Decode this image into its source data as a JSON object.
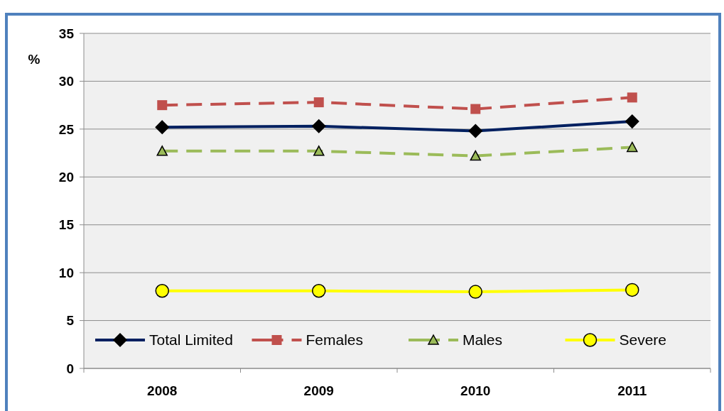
{
  "chart_data": {
    "type": "line",
    "ylabel": "%",
    "categories": [
      "2008",
      "2009",
      "2010",
      "2011"
    ],
    "series": [
      {
        "name": "Total Limited",
        "color": "#002060",
        "values": [
          25.2,
          25.3,
          24.8,
          25.8
        ],
        "marker": "diamond",
        "line_style": "solid"
      },
      {
        "name": "Females",
        "color": "#c0504d",
        "values": [
          27.5,
          27.8,
          27.1,
          28.3
        ],
        "marker": "square",
        "line_style": "dashed"
      },
      {
        "name": "Males",
        "color": "#9bbb59",
        "values": [
          22.7,
          22.7,
          22.2,
          23.1
        ],
        "marker": "triangle",
        "line_style": "dashed"
      },
      {
        "name": "Severe",
        "color": "#ffff00",
        "values": [
          8.1,
          8.1,
          8.0,
          8.2
        ],
        "marker": "circle",
        "line_style": "solid"
      }
    ],
    "ylim": [
      0,
      35
    ],
    "yticks": [
      0,
      5,
      10,
      15,
      20,
      25,
      30,
      35
    ],
    "grid": "y",
    "legend": "bottom"
  }
}
